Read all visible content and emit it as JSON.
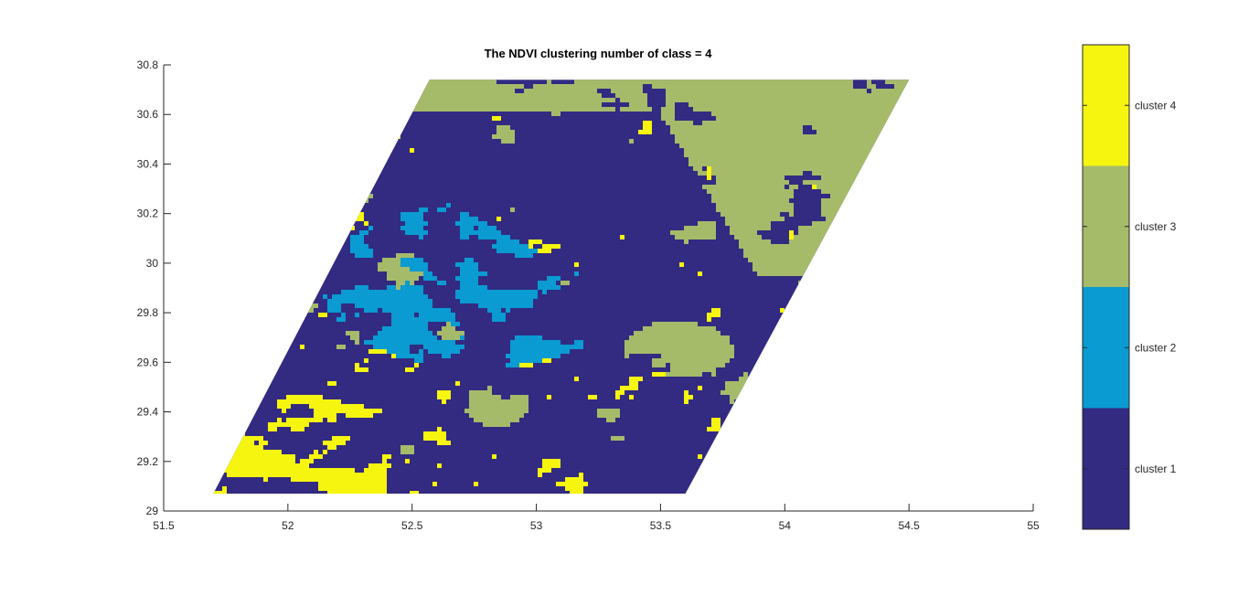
{
  "chart_data": {
    "type": "heatmap",
    "title": "The NDVI clustering number of class = 4",
    "xlabel": "",
    "ylabel": "",
    "xlim": [
      51.5,
      55
    ],
    "ylim": [
      29,
      30.8
    ],
    "x_ticks": [
      "51.5",
      "52",
      "52.5",
      "53",
      "53.5",
      "54",
      "54.5",
      "55"
    ],
    "y_ticks": [
      "29",
      "29.2",
      "29.4",
      "29.6",
      "29.8",
      "30",
      "30.2",
      "30.4",
      "30.6",
      "30.8"
    ],
    "x_tick_values": [
      51.5,
      52,
      52.5,
      53,
      53.5,
      54,
      54.5,
      55
    ],
    "y_tick_values": [
      29,
      29.2,
      29.4,
      29.6,
      29.8,
      30,
      30.2,
      30.4,
      30.6,
      30.8
    ],
    "data_extent": {
      "bottom_left": [
        51.7,
        29.07
      ],
      "bottom_right": [
        53.6,
        29.07
      ],
      "top_left": [
        52.57,
        30.74
      ],
      "top_right": [
        54.5,
        30.74
      ]
    },
    "grid": false,
    "colorbar": {
      "placement": "right",
      "classes": [
        {
          "label": "cluster 4",
          "color": "#f5f50f"
        },
        {
          "label": "cluster 3",
          "color": "#a5bb69"
        },
        {
          "label": "cluster 2",
          "color": "#099bd1"
        },
        {
          "label": "cluster 1",
          "color": "#332a82"
        }
      ]
    }
  }
}
